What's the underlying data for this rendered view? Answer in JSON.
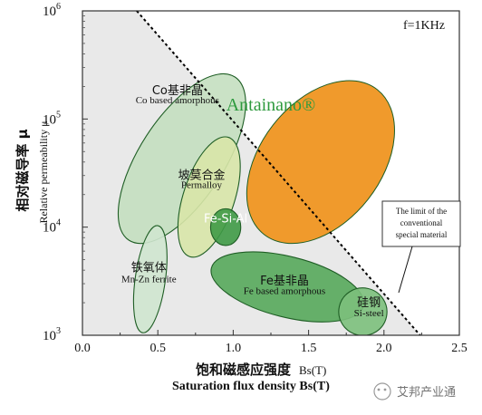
{
  "chart_data": {
    "type": "scatter",
    "annotation_freq": "f=1KHz",
    "xlabel_cn": "饱和磁感应强度",
    "xlabel_cn_unit": "Bs(T)",
    "xlabel_en": "Saturation flux density Bs(T)",
    "ylabel_cn": "相对磁导率 μ",
    "ylabel_en": "Relative permeability μ",
    "xlim": [
      0,
      2.5
    ],
    "ylim": [
      1000,
      1000000
    ],
    "y_scale": "log",
    "x_ticks": [
      "0.0",
      "0.5",
      "1.0",
      "1.5",
      "2.0",
      "2.5"
    ],
    "y_ticks": [
      {
        "base": "10",
        "exp": "3"
      },
      {
        "base": "10",
        "exp": "4"
      },
      {
        "base": "10",
        "exp": "5"
      },
      {
        "base": "10",
        "exp": "6"
      }
    ],
    "limit_line": {
      "points": [
        [
          0.36,
          1000000
        ],
        [
          2.24,
          1000
        ]
      ],
      "label_lines": [
        "The limit of the",
        "conventional",
        "special material"
      ]
    },
    "regions": [
      {
        "name_cn": "Co基非晶",
        "name_en": "Co based amorphous",
        "center": [
          0.66,
          43000
        ],
        "rx": 0.28,
        "ry_decades": 0.9,
        "rotate": 33,
        "color": "#c4dfc0"
      },
      {
        "name_cn": "坡莫合金",
        "name_en": "Permalloy",
        "center": [
          0.84,
          19000
        ],
        "rx": 0.17,
        "ry_decades": 0.58,
        "rotate": 18,
        "color": "#d8e6a8"
      },
      {
        "name_cn": "Fe-Si-Al",
        "name_en": "",
        "center": [
          0.95,
          10000
        ],
        "rx": 0.1,
        "ry_decades": 0.17,
        "rotate": 0,
        "color": "#3f9a46"
      },
      {
        "name_cn": "铁氧体",
        "name_en": "Mn-Zn ferrite",
        "center": [
          0.45,
          3300
        ],
        "rx": 0.1,
        "ry_decades": 0.5,
        "rotate": 8,
        "color": "#cfe6cf"
      },
      {
        "name_cn": "Fe基非晶",
        "name_en": "Fe based amorphous",
        "center": [
          1.36,
          2800
        ],
        "rx": 0.52,
        "ry_decades": 0.28,
        "rotate": 14,
        "color": "#56a95b"
      },
      {
        "name_cn": "硅钢",
        "name_en": "Si-steel",
        "center": [
          1.86,
          1650
        ],
        "rx": 0.16,
        "ry_decades": 0.22,
        "rotate": 12,
        "color": "#7cc07c"
      },
      {
        "name_cn": "Antainano®",
        "name_en": "",
        "center": [
          1.58,
          40000
        ],
        "rx": 0.4,
        "ry_decades": 0.85,
        "rotate": 38,
        "color": "#f09a2c"
      }
    ]
  },
  "watermark": {
    "text": "艾邦产业通"
  },
  "colors": {
    "plot_bg": "#e9e9e9",
    "antainano_text": "#2e9a3e",
    "limit_line": "#000000"
  }
}
